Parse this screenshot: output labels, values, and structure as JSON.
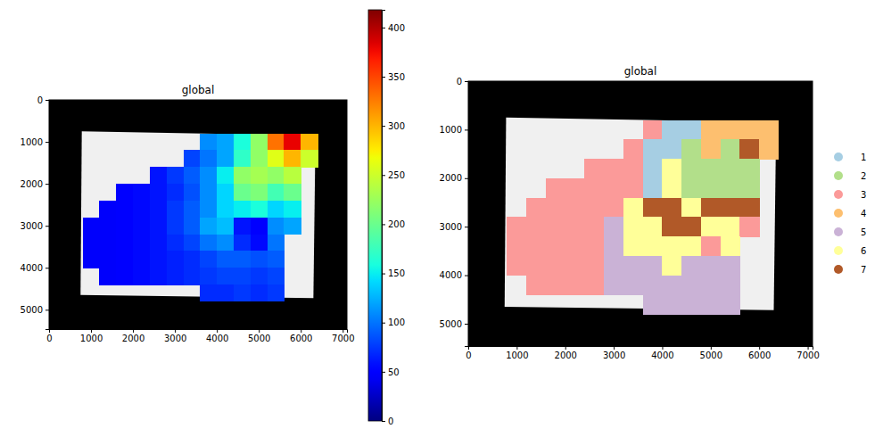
{
  "chart_data": [
    {
      "type": "heatmap",
      "title": "global",
      "xlim": [
        0,
        7100
      ],
      "ylim": [
        5460,
        0
      ],
      "xticks": [
        0,
        1000,
        2000,
        3000,
        4000,
        5000,
        6000,
        7000
      ],
      "yticks": [
        0,
        1000,
        2000,
        3000,
        4000,
        5000
      ],
      "x": [
        1000,
        1400,
        1800,
        2200,
        2600,
        3000,
        3400,
        3800,
        4200,
        4600,
        5000,
        5400,
        5800,
        6200
      ],
      "y": [
        1000,
        1400,
        1800,
        2200,
        2600,
        3000,
        3400,
        3800,
        4200,
        4600
      ],
      "values": [
        [
          null,
          null,
          null,
          null,
          null,
          null,
          null,
          110,
          120,
          160,
          220,
          330,
          380,
          300
        ],
        [
          null,
          null,
          null,
          null,
          null,
          null,
          80,
          100,
          120,
          170,
          220,
          260,
          300,
          250
        ],
        [
          null,
          null,
          null,
          null,
          60,
          75,
          90,
          110,
          150,
          220,
          230,
          220,
          240,
          null
        ],
        [
          null,
          null,
          50,
          55,
          60,
          70,
          85,
          110,
          140,
          200,
          210,
          180,
          200,
          null
        ],
        [
          null,
          45,
          50,
          55,
          60,
          75,
          90,
          110,
          140,
          150,
          160,
          140,
          150,
          null
        ],
        [
          45,
          45,
          50,
          55,
          60,
          75,
          90,
          120,
          130,
          60,
          50,
          110,
          120,
          null
        ],
        [
          45,
          45,
          50,
          55,
          60,
          70,
          80,
          100,
          110,
          70,
          55,
          100,
          null,
          null
        ],
        [
          45,
          45,
          50,
          55,
          60,
          65,
          70,
          80,
          90,
          90,
          85,
          90,
          null,
          null
        ],
        [
          null,
          45,
          50,
          55,
          60,
          65,
          70,
          75,
          80,
          80,
          75,
          80,
          null,
          null
        ],
        [
          null,
          null,
          null,
          null,
          null,
          null,
          null,
          70,
          70,
          75,
          70,
          75,
          null,
          null
        ]
      ],
      "colorbar": {
        "range": [
          0,
          418
        ],
        "ticks": [
          0,
          50,
          100,
          150,
          200,
          250,
          300,
          350,
          400
        ]
      }
    },
    {
      "type": "heatmap",
      "title": "global",
      "xlim": [
        0,
        7100
      ],
      "ylim": [
        5460,
        0
      ],
      "xticks": [
        0,
        1000,
        2000,
        3000,
        4000,
        5000,
        6000,
        7000
      ],
      "yticks": [
        0,
        1000,
        2000,
        3000,
        4000,
        5000
      ],
      "x": [
        1000,
        1400,
        1800,
        2200,
        2600,
        3000,
        3400,
        3800,
        4200,
        4600,
        5000,
        5400,
        5800,
        6200
      ],
      "y": [
        1000,
        1400,
        1800,
        2200,
        2600,
        3000,
        3400,
        3800,
        4200,
        4600
      ],
      "values": [
        [
          null,
          null,
          null,
          null,
          null,
          null,
          null,
          3,
          1,
          1,
          4,
          4,
          4,
          4
        ],
        [
          null,
          null,
          null,
          null,
          null,
          null,
          3,
          1,
          1,
          2,
          4,
          2,
          7,
          4
        ],
        [
          null,
          null,
          null,
          null,
          3,
          3,
          3,
          1,
          6,
          2,
          2,
          2,
          2,
          null
        ],
        [
          null,
          null,
          3,
          3,
          3,
          3,
          3,
          1,
          6,
          2,
          2,
          2,
          2,
          null
        ],
        [
          null,
          3,
          3,
          3,
          3,
          3,
          6,
          7,
          7,
          6,
          7,
          7,
          7,
          null
        ],
        [
          3,
          3,
          3,
          3,
          3,
          5,
          6,
          6,
          7,
          7,
          6,
          6,
          3,
          null
        ],
        [
          3,
          3,
          3,
          3,
          3,
          5,
          6,
          6,
          6,
          6,
          3,
          6,
          null,
          null
        ],
        [
          3,
          3,
          3,
          3,
          3,
          5,
          5,
          5,
          6,
          5,
          5,
          5,
          null,
          null
        ],
        [
          null,
          3,
          3,
          3,
          3,
          5,
          5,
          5,
          5,
          5,
          5,
          5,
          null,
          null
        ],
        [
          null,
          null,
          null,
          null,
          null,
          null,
          null,
          5,
          5,
          5,
          5,
          5,
          null,
          null
        ]
      ],
      "categories": [
        "1",
        "2",
        "3",
        "4",
        "5",
        "6",
        "7"
      ],
      "colors": [
        "#a6cee3",
        "#b2df8a",
        "#fb9a99",
        "#fdbf6f",
        "#cab2d6",
        "#ffff99",
        "#b15928"
      ],
      "legend": "right"
    }
  ]
}
